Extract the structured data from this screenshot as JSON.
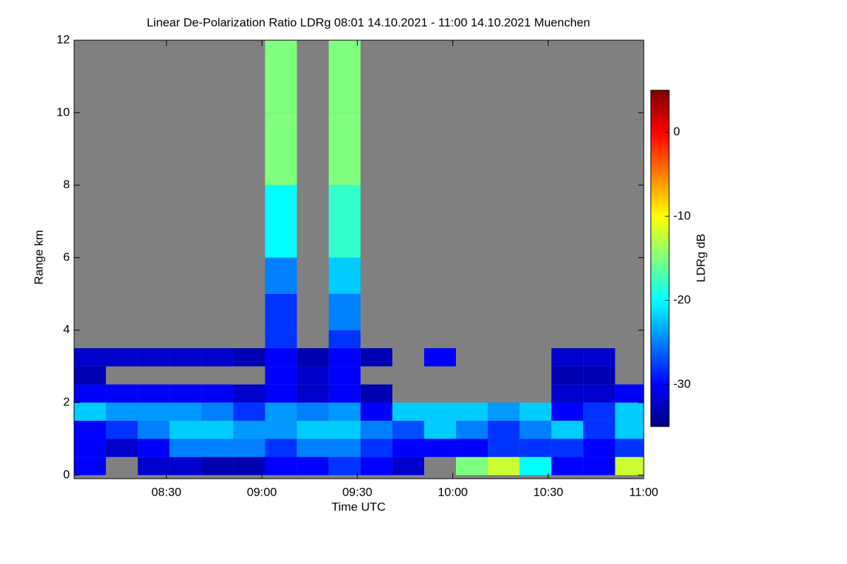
{
  "chart_data": {
    "type": "heatmap",
    "title": "Linear De-Polarization Ratio LDRg   08:01 14.10.2021 - 11:00 14.10.2021 Muenchen",
    "x_label": "Time UTC",
    "y_label": "Range km",
    "colorbar_label": "LDRg dB",
    "xlim": [
      481,
      660
    ],
    "xticks": [
      {
        "value": 510,
        "label": "08:30"
      },
      {
        "value": 540,
        "label": "09:00"
      },
      {
        "value": 570,
        "label": "09:30"
      },
      {
        "value": 600,
        "label": "10:00"
      },
      {
        "value": 630,
        "label": "10:30"
      },
      {
        "value": 660,
        "label": "11:00"
      }
    ],
    "ylim": [
      -0.1,
      12
    ],
    "yticks": [
      0,
      2,
      4,
      6,
      8,
      10,
      12
    ],
    "clim": [
      -35,
      5
    ],
    "cticks": [
      0,
      -10,
      -20,
      -30
    ],
    "colormap": "jet",
    "xbins": [
      481,
      491,
      501,
      511,
      521,
      531,
      541,
      551,
      561,
      571,
      581,
      591,
      601,
      611,
      621,
      631,
      641,
      651,
      660
    ],
    "ybins": [
      0,
      0.5,
      1,
      1.5,
      2,
      2.5,
      3,
      3.5,
      4,
      5,
      6,
      8,
      10,
      12
    ],
    "values": [
      [
        -30,
        null,
        -32,
        -32,
        -33,
        -33,
        -30,
        -30,
        -28,
        -30,
        -32,
        null,
        -15,
        -12,
        -20,
        -30,
        -30,
        -12
      ],
      [
        -30,
        -32,
        -30,
        -25,
        -25,
        -25,
        -28,
        -25,
        -25,
        -28,
        -30,
        -30,
        -30,
        -28,
        -28,
        -28,
        -30,
        -28
      ],
      [
        -30,
        -28,
        -25,
        -22,
        -22,
        -24,
        -24,
        -22,
        -22,
        -25,
        -27,
        -22,
        -25,
        -28,
        -25,
        -22,
        -28,
        -22
      ],
      [
        -22,
        -24,
        -24,
        -24,
        -25,
        -28,
        -24,
        -25,
        -24,
        -30,
        -22,
        -22,
        -22,
        -24,
        -22,
        -30,
        -28,
        -22
      ],
      [
        -30,
        -30,
        -30,
        -30,
        -30,
        -32,
        -30,
        -32,
        -30,
        -33,
        null,
        null,
        null,
        null,
        null,
        -32,
        -32,
        -30
      ],
      [
        -33,
        null,
        null,
        null,
        null,
        null,
        -30,
        -32,
        -30,
        null,
        null,
        null,
        null,
        null,
        null,
        -33,
        -33,
        null
      ],
      [
        -32,
        -32,
        -32,
        -32,
        -32,
        -33,
        -30,
        -33,
        -30,
        -33,
        null,
        -30,
        null,
        null,
        null,
        -32,
        -32,
        null
      ],
      [
        null,
        null,
        null,
        null,
        null,
        null,
        -28,
        null,
        -28,
        null,
        null,
        null,
        null,
        null,
        null,
        null,
        null,
        null
      ],
      [
        null,
        null,
        null,
        null,
        null,
        null,
        -28,
        null,
        -25,
        null,
        null,
        null,
        null,
        null,
        null,
        null,
        null,
        null
      ],
      [
        null,
        null,
        null,
        null,
        null,
        null,
        -25,
        null,
        -22,
        null,
        null,
        null,
        null,
        null,
        null,
        null,
        null,
        null
      ],
      [
        null,
        null,
        null,
        null,
        null,
        null,
        -20,
        null,
        -18,
        null,
        null,
        null,
        null,
        null,
        null,
        null,
        null,
        null
      ],
      [
        null,
        null,
        null,
        null,
        null,
        null,
        -15,
        null,
        -15,
        null,
        null,
        null,
        null,
        null,
        null,
        null,
        null,
        null
      ],
      [
        null,
        null,
        null,
        null,
        null,
        null,
        -15,
        null,
        -15,
        null,
        null,
        null,
        null,
        null,
        null,
        null,
        null,
        null
      ]
    ]
  }
}
